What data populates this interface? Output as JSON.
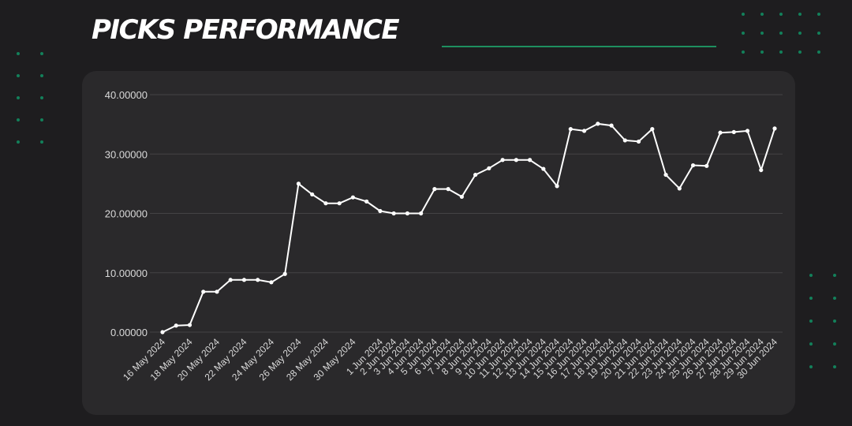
{
  "header": {
    "title": "PICKS PERFORMANCE"
  },
  "colors": {
    "background": "#1e1d1f",
    "panel": "#2a292b",
    "accent": "#1e8f5f",
    "line": "#ffffff",
    "grid": "#444345",
    "text": "#d9d9d9"
  },
  "chart_data": {
    "type": "line",
    "title": "PICKS PERFORMANCE",
    "xlabel": "",
    "ylabel": "",
    "ylim": [
      0,
      40
    ],
    "yticks": [
      "0.00000",
      "10.00000",
      "20.00000",
      "30.00000",
      "40.00000"
    ],
    "grid": "horizontal",
    "legend": "none",
    "x": [
      "16 May 2024",
      "17 May 2024",
      "18 May 2024",
      "19 May 2024",
      "20 May 2024",
      "21 May 2024",
      "22 May 2024",
      "23 May 2024",
      "24 May 2024",
      "25 May 2024",
      "26 May 2024",
      "27 May 2024",
      "28 May 2024",
      "29 May 2024",
      "30 May 2024",
      "31 May 2024",
      "1 Jun 2024",
      "2 Jun 2024",
      "3 Jun 2024",
      "4 Jun 2024",
      "5 Jun 2024",
      "6 Jun 2024",
      "7 Jun 2024",
      "8 Jun 2024",
      "9 Jun 2024",
      "10 Jun 2024",
      "11 Jun 2024",
      "12 Jun 2024",
      "13 Jun 2024",
      "14 Jun 2024",
      "15 Jun 2024",
      "16 Jun 2024",
      "17 Jun 2024",
      "18 Jun 2024",
      "19 Jun 2024",
      "20 Jun 2024",
      "21 Jun 2024",
      "22 Jun 2024",
      "23 Jun 2024",
      "24 Jun 2024",
      "25 Jun 2024",
      "26 Jun 2024",
      "27 Jun 2024",
      "28 Jun 2024",
      "29 Jun 2024",
      "30 Jun 2024"
    ],
    "xtick_labels": [
      "16 May 2024",
      "18 May 2024",
      "20 May 2024",
      "22 May 2024",
      "24 May 2024",
      "26 May 2024",
      "28 May 2024",
      "30 May 2024",
      "1 Jun 2024",
      "2 Jun 2024",
      "3 Jun 2024",
      "4 Jun 2024",
      "5 Jun 2024",
      "6 Jun 2024",
      "7 Jun 2024",
      "8 Jun 2024",
      "9 Jun 2024",
      "10 Jun 2024",
      "11 Jun 2024",
      "12 Jun 2024",
      "13 Jun 2024",
      "14 Jun 2024",
      "15 Jun 2024",
      "16 Jun 2024",
      "17 Jun 2024",
      "18 Jun 2024",
      "19 Jun 2024",
      "20 Jun 2024",
      "21 Jun 2024",
      "22 Jun 2024",
      "23 Jun 2024",
      "24 Jun 2024",
      "25 Jun 2024",
      "26 Jun 2024",
      "27 Jun 2024",
      "28 Jun 2024",
      "29 Jun 2024",
      "30 Jun 2024"
    ],
    "series": [
      {
        "values": [
          0.0,
          1.1,
          1.2,
          6.8,
          6.8,
          8.8,
          8.8,
          8.8,
          8.4,
          9.8,
          25.0,
          23.2,
          21.7,
          21.7,
          22.7,
          22.0,
          20.4,
          20.0,
          20.0,
          20.0,
          24.1,
          24.1,
          22.8,
          26.5,
          27.6,
          29.0,
          29.0,
          29.0,
          27.5,
          24.6,
          34.2,
          33.9,
          35.1,
          34.8,
          32.3,
          32.1,
          34.2,
          26.5,
          24.2,
          28.1,
          28.0,
          33.6,
          33.7,
          33.9,
          27.3,
          34.3
        ]
      }
    ]
  }
}
